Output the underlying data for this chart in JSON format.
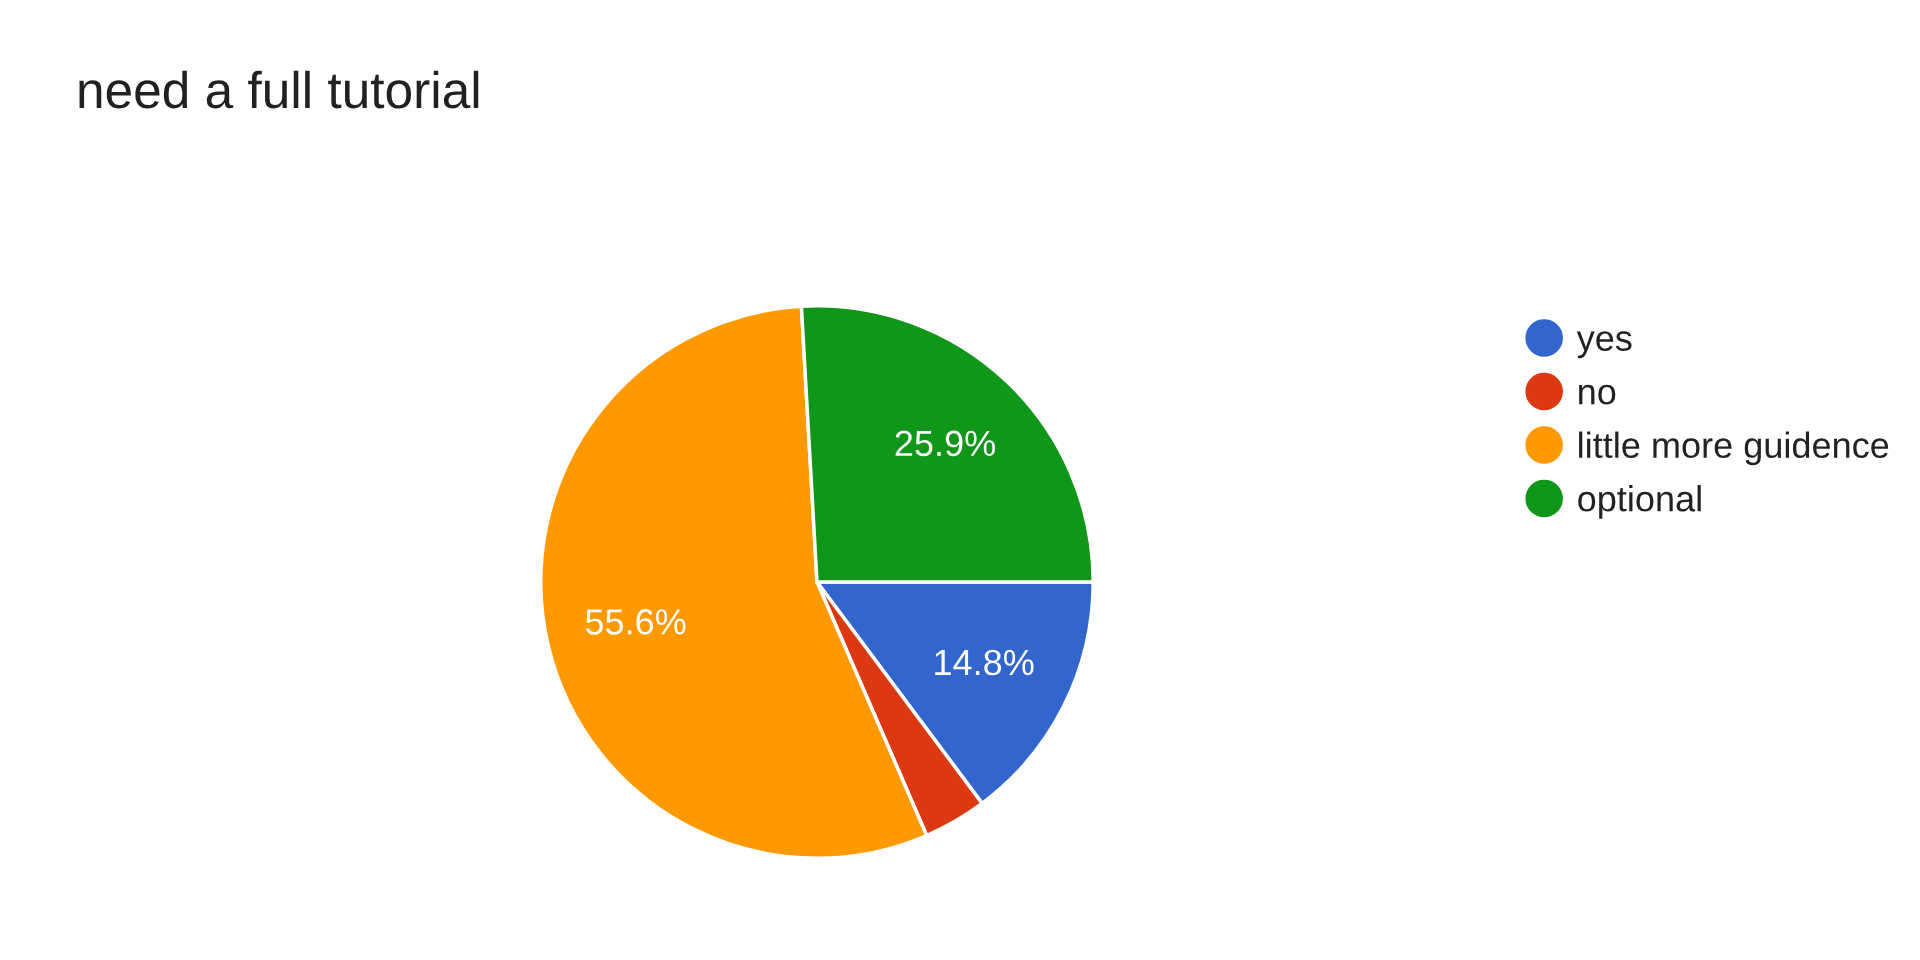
{
  "chart_data": {
    "type": "pie",
    "title": "need a full tutorial",
    "categories": [
      "yes",
      "no",
      "little more guidence",
      "optional"
    ],
    "values": [
      14.8,
      3.7,
      55.6,
      25.9
    ],
    "colors": [
      "#3366cc",
      "#dc3912",
      "#ff9900",
      "#109618"
    ],
    "value_labels": [
      "14.8%",
      null,
      "55.6%",
      "25.9%"
    ],
    "legend": "right"
  }
}
